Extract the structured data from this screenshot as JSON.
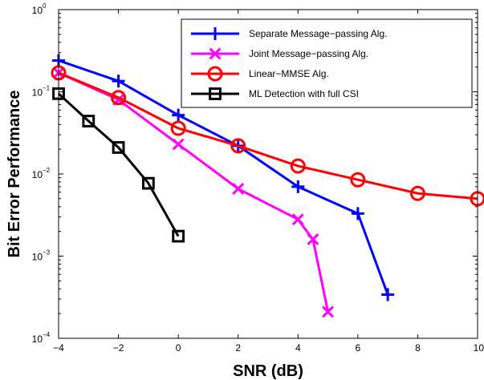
{
  "chart_data": {
    "type": "line",
    "title": "",
    "xlabel": "SNR (dB)",
    "ylabel": "Bit Error Performance",
    "xlim": [
      -4,
      10
    ],
    "ylim": [
      0.0001,
      1
    ],
    "yscale": "log",
    "grid": false,
    "legend_position": "top-right",
    "x_ticks": [
      {
        "value": -4,
        "label": "−4"
      },
      {
        "value": -2,
        "label": "−2"
      },
      {
        "value": 0,
        "label": "0"
      },
      {
        "value": 2,
        "label": "2"
      },
      {
        "value": 4,
        "label": "4"
      },
      {
        "value": 6,
        "label": "6"
      },
      {
        "value": 8,
        "label": "8"
      },
      {
        "value": 10,
        "label": "10"
      }
    ],
    "y_ticks": [
      {
        "value": 1,
        "base": "10",
        "exp": "0"
      },
      {
        "value": 0.1,
        "base": "10",
        "exp": "−1"
      },
      {
        "value": 0.01,
        "base": "10",
        "exp": "−2"
      },
      {
        "value": 0.001,
        "base": "10",
        "exp": "−3"
      },
      {
        "value": 0.0001,
        "base": "10",
        "exp": "−4"
      }
    ],
    "series": [
      {
        "name": "Separate Message−passing Alg.",
        "color": "#0000ff",
        "marker": "plus",
        "x": [
          -4,
          -2,
          0,
          2,
          4,
          6,
          7
        ],
        "y": [
          0.24,
          0.135,
          0.052,
          0.022,
          0.007,
          0.0033,
          0.00034
        ]
      },
      {
        "name": "Joint Message−passing Alg.",
        "color": "#ff00ff",
        "marker": "x",
        "x": [
          -4,
          -2,
          0,
          2,
          4,
          4.5,
          5
        ],
        "y": [
          0.17,
          0.08,
          0.023,
          0.0066,
          0.0028,
          0.0016,
          0.00021
        ]
      },
      {
        "name": "Linear−MMSE Alg.",
        "color": "#ff0000",
        "marker": "circle",
        "x": [
          -4,
          -2,
          0,
          2,
          4,
          6,
          8,
          10
        ],
        "y": [
          0.17,
          0.085,
          0.036,
          0.022,
          0.0125,
          0.0085,
          0.0058,
          0.005
        ]
      },
      {
        "name": "ML Detection with full CSI",
        "color": "#000000",
        "marker": "square",
        "x": [
          -4,
          -3,
          -2,
          -1,
          0
        ],
        "y": [
          0.095,
          0.044,
          0.021,
          0.0077,
          0.00175
        ]
      }
    ]
  }
}
